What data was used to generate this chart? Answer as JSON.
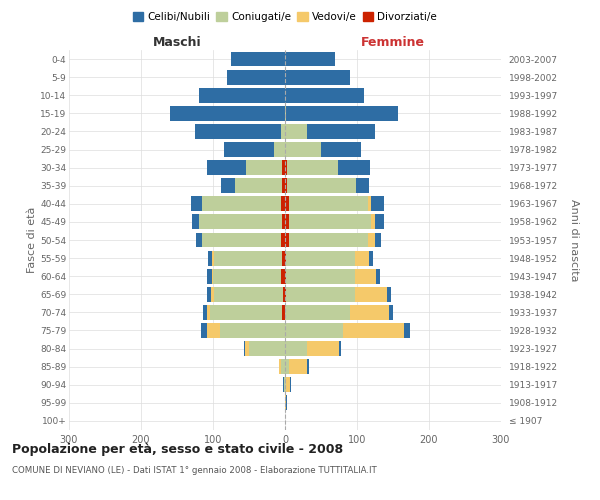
{
  "age_groups": [
    "100+",
    "95-99",
    "90-94",
    "85-89",
    "80-84",
    "75-79",
    "70-74",
    "65-69",
    "60-64",
    "55-59",
    "50-54",
    "45-49",
    "40-44",
    "35-39",
    "30-34",
    "25-29",
    "20-24",
    "15-19",
    "10-14",
    "5-9",
    "0-4"
  ],
  "birth_years": [
    "≤ 1907",
    "1908-1912",
    "1913-1917",
    "1918-1922",
    "1923-1927",
    "1928-1932",
    "1933-1937",
    "1938-1942",
    "1943-1947",
    "1948-1952",
    "1953-1957",
    "1958-1962",
    "1963-1967",
    "1968-1972",
    "1973-1977",
    "1978-1982",
    "1983-1987",
    "1988-1992",
    "1993-1997",
    "1998-2002",
    "2003-2007"
  ],
  "colors": {
    "celibi": "#2E6DA4",
    "coniugati": "#BECF9B",
    "vedovi": "#F5C96A",
    "divorziati": "#CC2200"
  },
  "maschi": {
    "celibi": [
      0,
      0,
      1,
      1,
      2,
      8,
      5,
      5,
      6,
      6,
      8,
      10,
      15,
      20,
      55,
      70,
      120,
      160,
      120,
      80,
      75
    ],
    "coniugati": [
      0,
      0,
      2,
      5,
      50,
      90,
      100,
      95,
      95,
      95,
      110,
      115,
      110,
      65,
      50,
      15,
      5,
      0,
      0,
      0,
      0
    ],
    "vedovi": [
      0,
      0,
      0,
      3,
      5,
      18,
      5,
      5,
      2,
      2,
      0,
      0,
      0,
      0,
      0,
      0,
      0,
      0,
      0,
      0,
      0
    ],
    "divorziati": [
      0,
      0,
      0,
      0,
      0,
      0,
      4,
      3,
      5,
      4,
      5,
      4,
      5,
      4,
      4,
      0,
      0,
      0,
      0,
      0,
      0
    ]
  },
  "femmine": {
    "celibi": [
      0,
      1,
      2,
      3,
      3,
      8,
      5,
      5,
      5,
      5,
      8,
      12,
      18,
      18,
      45,
      55,
      95,
      155,
      110,
      90,
      70
    ],
    "coniugati": [
      0,
      0,
      2,
      5,
      30,
      80,
      90,
      95,
      95,
      95,
      110,
      115,
      110,
      95,
      70,
      50,
      30,
      2,
      0,
      0,
      0
    ],
    "vedovi": [
      0,
      2,
      5,
      25,
      45,
      85,
      55,
      45,
      30,
      20,
      10,
      5,
      5,
      0,
      0,
      0,
      0,
      0,
      0,
      0,
      0
    ],
    "divorziati": [
      0,
      0,
      0,
      0,
      0,
      0,
      0,
      2,
      2,
      2,
      5,
      5,
      5,
      3,
      3,
      0,
      0,
      0,
      0,
      0,
      0
    ]
  },
  "xlim": 300,
  "title": "Popolazione per età, sesso e stato civile - 2008",
  "subtitle": "COMUNE DI NEVIANO (LE) - Dati ISTAT 1° gennaio 2008 - Elaborazione TUTTITALIA.IT",
  "ylabel_left": "Fasce di età",
  "ylabel_right": "Anni di nascita",
  "xlabel_maschi": "Maschi",
  "xlabel_femmine": "Femmine",
  "legend_labels": [
    "Celibi/Nubili",
    "Coniugati/e",
    "Vedovi/e",
    "Divorziati/e"
  ],
  "bg_color": "#FFFFFF",
  "grid_color": "#DDDDDD",
  "maschi_label_color": "#333333",
  "femmine_label_color": "#CC3333"
}
